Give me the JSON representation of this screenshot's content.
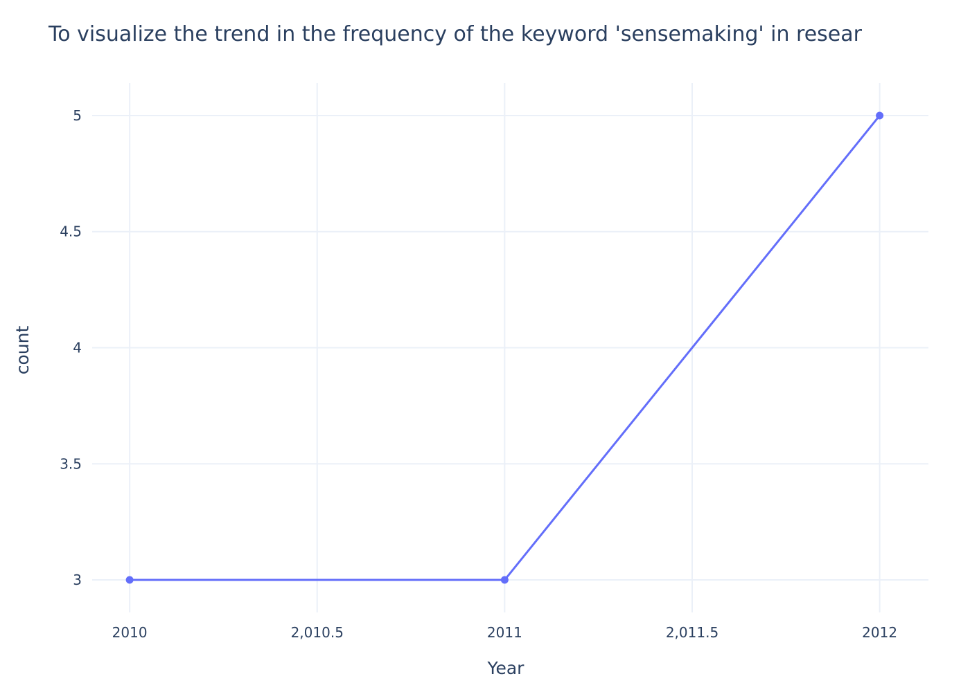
{
  "chart_data": {
    "type": "line",
    "title": "To visualize the trend in the frequency of the keyword 'sensemaking' in resear",
    "xlabel": "Year",
    "ylabel": "count",
    "x": [
      2010,
      2011,
      2012
    ],
    "series": [
      {
        "values": [
          3,
          3,
          5
        ],
        "color": "#636efa",
        "mode": "lines+markers"
      }
    ],
    "x_ticks": [
      "2010",
      "2,010.5",
      "2011",
      "2,011.5",
      "2012"
    ],
    "x_tick_values": [
      2010,
      2010.5,
      2011,
      2011.5,
      2012
    ],
    "y_ticks": [
      "3",
      "3.5",
      "4",
      "4.5",
      "5"
    ],
    "y_tick_values": [
      3,
      3.5,
      4,
      4.5,
      5
    ],
    "xlim": [
      2009.9,
      2012.13
    ],
    "ylim": [
      2.86,
      5.14
    ],
    "grid": true,
    "legend": "none",
    "colors": {
      "text": "#2a3f5f",
      "grid": "#ebf0f8",
      "background": "#ffffff"
    }
  }
}
